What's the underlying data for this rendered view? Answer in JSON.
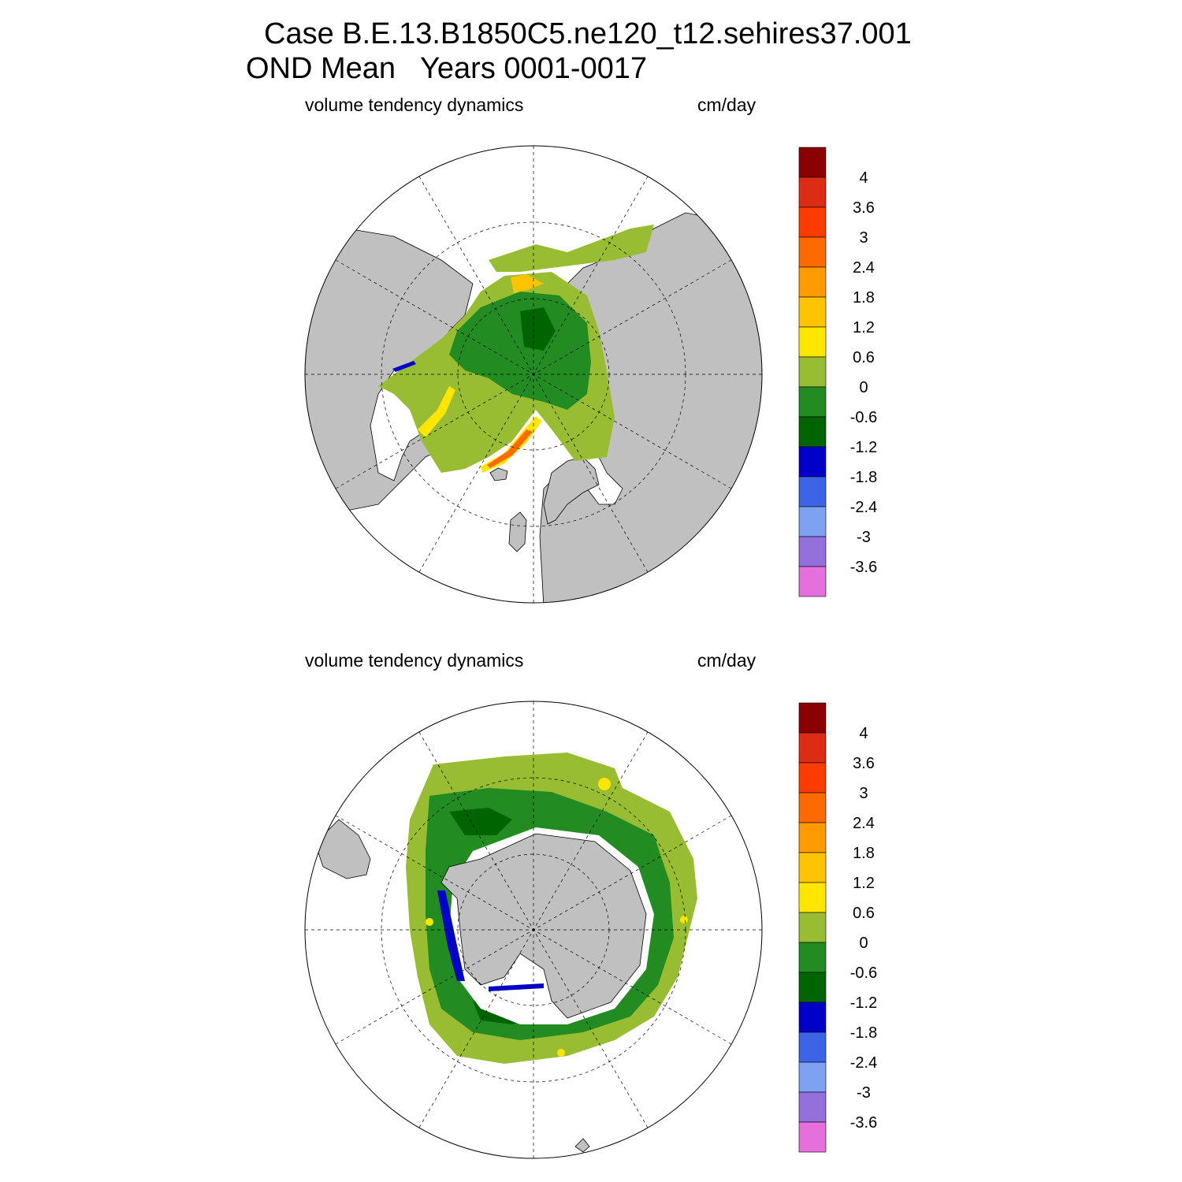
{
  "title_line1": "Case B.E.13.B1850C5.ne120_t12.sehires37.001",
  "title_line2": "OND Mean   Years 0001-0017",
  "panels": [
    {
      "id": "north",
      "hemisphere": "Northern Hemisphere",
      "left_label": "volume tendency dynamics",
      "right_label": "cm/day"
    },
    {
      "id": "south",
      "hemisphere": "Southern Hemisphere",
      "left_label": "volume tendency dynamics",
      "right_label": "cm/day"
    }
  ],
  "chart_data": [
    {
      "type": "heatmap",
      "title": "volume tendency dynamics",
      "units": "cm/day",
      "projection": "polar stereographic (north)",
      "colorbar": {
        "levels": [
          "4",
          "3.6",
          "3",
          "2.4",
          "1.8",
          "1.2",
          "0.6",
          "0",
          "-0.6",
          "-1.2",
          "-1.8",
          "-2.4",
          "-3",
          "-3.6"
        ],
        "colors": [
          "#8b0000",
          "#dc2c14",
          "#ff3c00",
          "#ff6a00",
          "#ff9a00",
          "#ffc300",
          "#ffe600",
          "#98bd33",
          "#228b22",
          "#006400",
          "#0000c8",
          "#3c64e6",
          "#7ea1f2",
          "#9370db",
          "#e670db"
        ]
      },
      "land_color": "#c0c0c0",
      "grid": true
    },
    {
      "type": "heatmap",
      "title": "volume tendency dynamics",
      "units": "cm/day",
      "projection": "polar stereographic (south)",
      "colorbar": {
        "levels": [
          "4",
          "3.6",
          "3",
          "2.4",
          "1.8",
          "1.2",
          "0.6",
          "0",
          "-0.6",
          "-1.2",
          "-1.8",
          "-2.4",
          "-3",
          "-3.6"
        ],
        "colors": [
          "#8b0000",
          "#dc2c14",
          "#ff3c00",
          "#ff6a00",
          "#ff9a00",
          "#ffc300",
          "#ffe600",
          "#98bd33",
          "#228b22",
          "#006400",
          "#0000c8",
          "#3c64e6",
          "#7ea1f2",
          "#9370db",
          "#e670db"
        ]
      },
      "land_color": "#c0c0c0",
      "grid": true
    }
  ]
}
